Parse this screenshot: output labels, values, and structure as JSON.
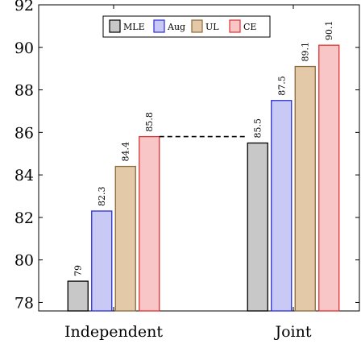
{
  "chart_data": {
    "type": "bar",
    "categories": [
      "Independent",
      "Joint"
    ],
    "series": [
      {
        "name": "MLE",
        "values": [
          79,
          85.5
        ],
        "fill": "#c8c8c8",
        "stroke": "#000000"
      },
      {
        "name": "Aug",
        "values": [
          82.3,
          87.5
        ],
        "fill": "#c9c9f5",
        "stroke": "#2c2cd6"
      },
      {
        "name": "UL",
        "values": [
          84.4,
          89.1
        ],
        "fill": "#e3c9a8",
        "stroke": "#8a6a3a"
      },
      {
        "name": "CE",
        "values": [
          85.8,
          90.1
        ],
        "fill": "#f8c6c6",
        "stroke": "#e03030"
      }
    ],
    "data_labels": [
      [
        "79",
        "85.5"
      ],
      [
        "82.3",
        "87.5"
      ],
      [
        "84.4",
        "89.1"
      ],
      [
        "85.8",
        "90.1"
      ]
    ],
    "y_ticks": [
      78,
      80,
      82,
      84,
      86,
      88,
      90,
      92
    ],
    "ylim": [
      77.6,
      92
    ],
    "legend_position": "top-center",
    "grid": false,
    "reference_line": {
      "from": "Independent CE",
      "to": "Joint MLE",
      "style": "dashed"
    }
  }
}
